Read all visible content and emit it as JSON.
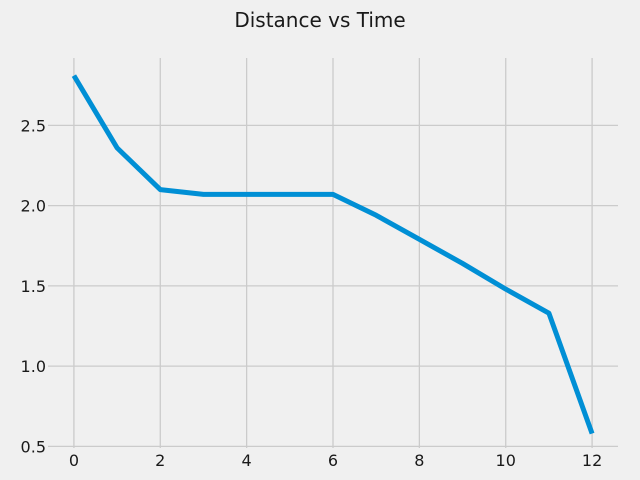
{
  "chart_data": {
    "type": "line",
    "title": "Distance vs Time",
    "xlabel": "",
    "ylabel": "",
    "xlim": [
      -0.6,
      12.6
    ],
    "ylim": [
      0.49,
      2.92
    ],
    "x_ticks": [
      0,
      2,
      4,
      6,
      8,
      10,
      12
    ],
    "y_ticks": [
      0.5,
      1.0,
      1.5,
      2.0,
      2.5
    ],
    "x_tick_labels": [
      "0",
      "2",
      "4",
      "6",
      "8",
      "10",
      "12"
    ],
    "y_tick_labels": [
      "0.5",
      "1.0",
      "1.5",
      "2.0",
      "2.5"
    ],
    "grid": true,
    "legend": "none",
    "colors": {
      "background": "#f0f0f0",
      "grid": "#cbcbcb",
      "series": "#008fd5",
      "text": "#1a1a1a"
    },
    "x": [
      0,
      1,
      2,
      3,
      4,
      5,
      6,
      7,
      8,
      9,
      10,
      11,
      12
    ],
    "series": [
      {
        "values": [
          2.81,
          2.36,
          2.1,
          2.07,
          2.07,
          2.07,
          2.07,
          1.94,
          1.79,
          1.64,
          1.48,
          1.33,
          0.58
        ]
      }
    ]
  }
}
